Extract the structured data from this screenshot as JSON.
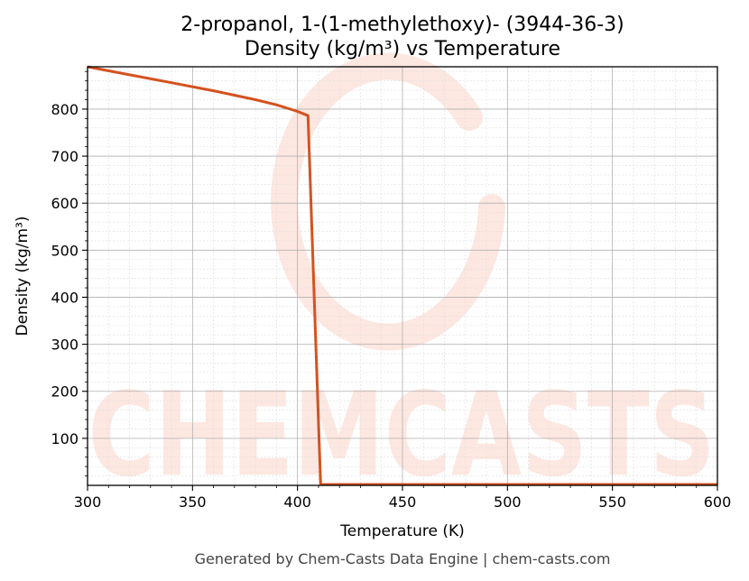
{
  "chart_data": {
    "type": "line",
    "title": "2-propanol, 1-(1-methylethoxy)- (3944-36-3)",
    "subtitle": "Density (kg/m³) vs Temperature",
    "xlabel": "Temperature (K)",
    "ylabel": "Density (kg/m³)",
    "xlim": [
      300,
      600
    ],
    "ylim": [
      0,
      890
    ],
    "xticks": [
      300,
      350,
      400,
      450,
      500,
      550,
      600
    ],
    "yticks": [
      100,
      200,
      300,
      400,
      500,
      600,
      700,
      800
    ],
    "grid": true,
    "series": [
      {
        "color": "#d4521f",
        "x": [
          300,
          320,
          340,
          360,
          380,
          390,
          400,
          405,
          411,
          420,
          500,
          600
        ],
        "y": [
          890,
          873,
          856,
          839,
          820,
          809,
          795,
          786,
          2,
          2,
          2,
          2
        ]
      }
    ],
    "colors": {
      "line": "#d4521f",
      "watermark": "#fde3dc",
      "grid_major": "#b0b0b0",
      "grid_minor": "#dddddd"
    }
  },
  "watermark": {
    "text": "CHEMCASTS"
  },
  "footer": "Generated by Chem-Casts Data Engine | chem-casts.com"
}
